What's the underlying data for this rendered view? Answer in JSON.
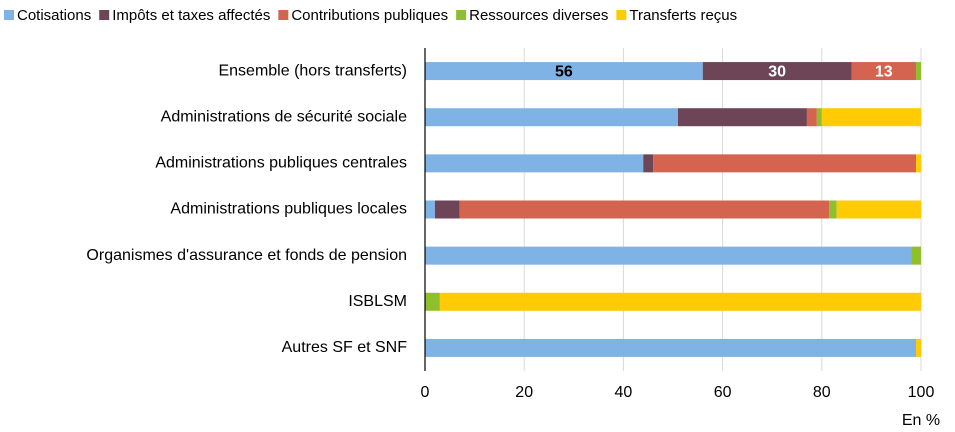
{
  "chart_data": {
    "type": "stacked_barh",
    "categories": [
      "Ensemble (hors transferts)",
      "Administrations de sécurité sociale",
      "Administrations publiques centrales",
      "Administrations publiques locales",
      "Organismes d'assurance et fonds de pension",
      "ISBLSM",
      "Autres SF et SNF"
    ],
    "series": [
      {
        "name": "Cotisations",
        "color": "#7fb2e5",
        "values": [
          56,
          51,
          44,
          2,
          98,
          0,
          99
        ],
        "value_labels": [
          "56",
          null,
          null,
          null,
          null,
          null,
          null
        ]
      },
      {
        "name": "Impôts et taxes affectés",
        "color": "#6e4457",
        "values": [
          30,
          26,
          2,
          5,
          0,
          0,
          0
        ],
        "value_labels": [
          "30",
          null,
          null,
          null,
          null,
          null,
          null
        ]
      },
      {
        "name": "Contributions publiques",
        "color": "#d4634f",
        "values": [
          13,
          2,
          53,
          74.5,
          0,
          0,
          0
        ],
        "value_labels": [
          "13",
          null,
          null,
          null,
          null,
          null,
          null
        ]
      },
      {
        "name": "Ressources diverses",
        "color": "#8fbf2a",
        "values": [
          1,
          1,
          0,
          1.5,
          2,
          3,
          0
        ]
      },
      {
        "name": "Transferts reçus",
        "color": "#ffcb05",
        "values": [
          0,
          20,
          1,
          17,
          0,
          97,
          1
        ]
      }
    ],
    "xlim": [
      0,
      100
    ],
    "xticks": [
      0,
      20,
      40,
      60,
      80,
      100
    ],
    "xlabel": "En %",
    "grid": true,
    "legend": "top"
  }
}
